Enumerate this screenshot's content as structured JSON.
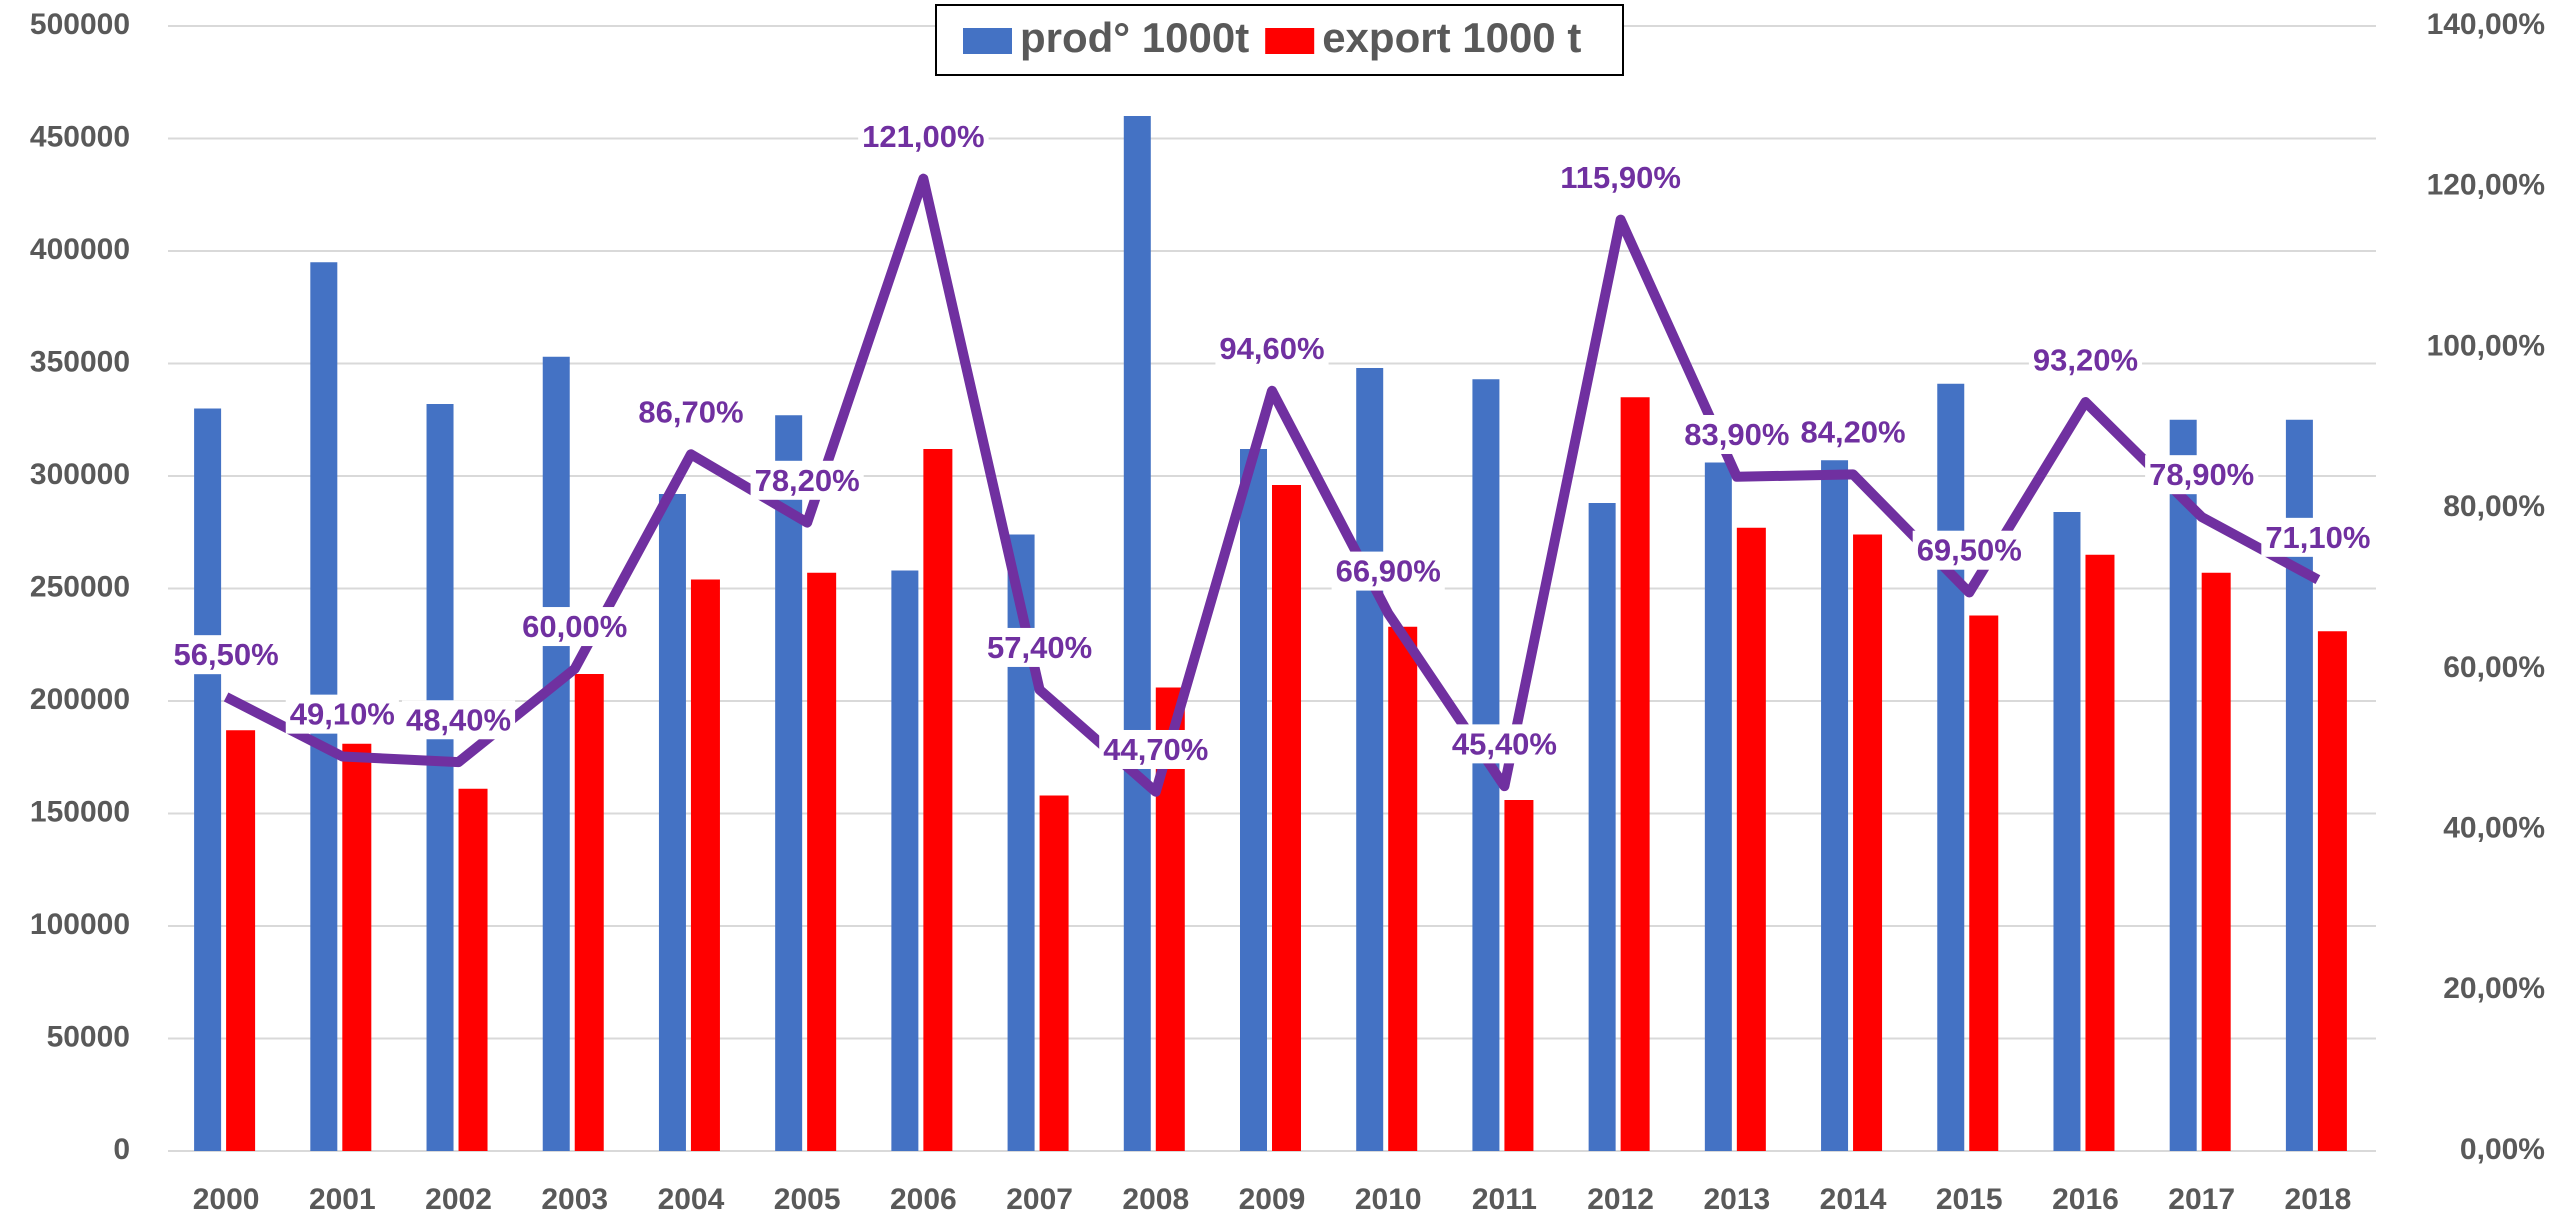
{
  "chart_data": {
    "type": "bar",
    "categories": [
      "2000",
      "2001",
      "2002",
      "2003",
      "2004",
      "2005",
      "2006",
      "2007",
      "2008",
      "2009",
      "2010",
      "2011",
      "2012",
      "2013",
      "2014",
      "2015",
      "2016",
      "2017",
      "2018"
    ],
    "series": [
      {
        "name": "prod° 1000t",
        "color": "#4472c4",
        "values": [
          330000,
          395000,
          332000,
          353000,
          292000,
          327000,
          258000,
          274000,
          460000,
          312000,
          348000,
          343000,
          288000,
          306000,
          307000,
          341000,
          284000,
          325000,
          325000
        ]
      },
      {
        "name": "export 1000 t",
        "color": "#ff0000",
        "values": [
          187000,
          181000,
          161000,
          212000,
          254000,
          257000,
          312000,
          158000,
          206000,
          296000,
          233000,
          156000,
          335000,
          277000,
          274000,
          238000,
          265000,
          257000,
          231000
        ]
      },
      {
        "type": "line",
        "axis": "y2",
        "color": "#7030a0",
        "values": [
          56.5,
          49.1,
          48.4,
          60,
          86.7,
          78.2,
          121,
          57.4,
          44.7,
          94.6,
          66.9,
          45.4,
          115.9,
          83.9,
          84.2,
          69.5,
          93.2,
          78.9,
          71.1
        ],
        "value_labels": [
          "56,50%",
          "49,10%",
          "48,40%",
          "60,00%",
          "86,70%",
          "78,20%",
          "121,00%",
          "57,40%",
          "44,70%",
          "94,60%",
          "66,90%",
          "45,40%",
          "115,90%",
          "83,90%",
          "84,20%",
          "69,50%",
          "93,20%",
          "78,90%",
          "71,10%"
        ]
      }
    ],
    "ylim": [
      0,
      500000
    ],
    "yticks": [
      0,
      50000,
      100000,
      150000,
      200000,
      250000,
      300000,
      350000,
      400000,
      450000,
      500000
    ],
    "y2lim": [
      0,
      140
    ],
    "y2ticks": [
      {
        "value": 0,
        "label": "0,00%"
      },
      {
        "value": 20,
        "label": "20,00%"
      },
      {
        "value": 40,
        "label": "40,00%"
      },
      {
        "value": 60,
        "label": "60,00%"
      },
      {
        "value": 80,
        "label": "80,00%"
      },
      {
        "value": 100,
        "label": "100,00%"
      },
      {
        "value": 120,
        "label": "120,00%"
      },
      {
        "value": 140,
        "label": "140,00%"
      }
    ],
    "grid": true,
    "legend": "top"
  }
}
